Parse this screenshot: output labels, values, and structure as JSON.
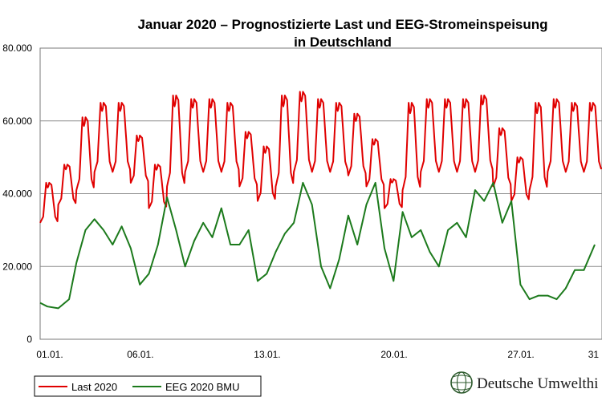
{
  "chart_data": {
    "type": "line",
    "title_lines": [
      "Januar 2020 – Prognostizierte Last und EEG-Stromeinspeisung",
      "in Deutschland"
    ],
    "ylim": [
      0,
      80000
    ],
    "y_ticks": [
      {
        "value": 0,
        "label": "0"
      },
      {
        "value": 20000,
        "label": "20.000"
      },
      {
        "value": 40000,
        "label": "40.000"
      },
      {
        "value": 60000,
        "label": "60.000"
      },
      {
        "value": 80000,
        "label": "80.000"
      }
    ],
    "xlim": [
      0,
      31
    ],
    "x_ticks": [
      {
        "value": 0,
        "label": "01.01."
      },
      {
        "value": 5,
        "label": "06.01."
      },
      {
        "value": 12,
        "label": "13.01."
      },
      {
        "value": 19,
        "label": "20.01."
      },
      {
        "value": 26,
        "label": "27.01."
      },
      {
        "value": 30,
        "label": "31"
      }
    ],
    "grid": true,
    "legend_position": "bottom-left",
    "series": [
      {
        "name": "Last 2020",
        "color": "#e00000",
        "daily_peaks": [
          43000,
          48000,
          61000,
          65000,
          65000,
          56000,
          48000,
          67000,
          66000,
          66000,
          65000,
          57000,
          53000,
          67000,
          68000,
          66000,
          65000,
          62000,
          55000,
          44000,
          65000,
          66000,
          66000,
          66000,
          67000,
          58000,
          50000,
          65000,
          66000,
          65000,
          65000
        ],
        "daily_troughs": [
          32000,
          37000,
          41000,
          46000,
          46000,
          43000,
          36000,
          42000,
          46000,
          46000,
          46000,
          42000,
          38000,
          42000,
          46000,
          46000,
          46000,
          45000,
          42000,
          36000,
          41000,
          46000,
          46000,
          46000,
          46000,
          42000,
          38000,
          41000,
          46000,
          46000,
          46000
        ]
      },
      {
        "name": "EEG 2020 BMU",
        "color": "#1c7a1c",
        "points": [
          [
            0,
            10000
          ],
          [
            0.4,
            9000
          ],
          [
            1,
            8500
          ],
          [
            1.6,
            11000
          ],
          [
            2,
            21000
          ],
          [
            2.5,
            30000
          ],
          [
            3,
            33000
          ],
          [
            3.5,
            30000
          ],
          [
            4,
            26000
          ],
          [
            4.5,
            31000
          ],
          [
            5,
            25000
          ],
          [
            5.5,
            15000
          ],
          [
            6,
            18000
          ],
          [
            6.5,
            26000
          ],
          [
            7,
            39000
          ],
          [
            7.5,
            30000
          ],
          [
            8,
            20000
          ],
          [
            8.5,
            27000
          ],
          [
            9,
            32000
          ],
          [
            9.5,
            28000
          ],
          [
            10,
            36000
          ],
          [
            10.5,
            26000
          ],
          [
            11,
            26000
          ],
          [
            11.5,
            30000
          ],
          [
            12,
            16000
          ],
          [
            12.5,
            18000
          ],
          [
            13,
            24000
          ],
          [
            13.5,
            29000
          ],
          [
            14,
            32000
          ],
          [
            14.5,
            43000
          ],
          [
            15,
            37000
          ],
          [
            15.5,
            20000
          ],
          [
            16,
            14000
          ],
          [
            16.5,
            22000
          ],
          [
            17,
            34000
          ],
          [
            17.5,
            26000
          ],
          [
            18,
            37000
          ],
          [
            18.5,
            43000
          ],
          [
            19,
            25000
          ],
          [
            19.5,
            16000
          ],
          [
            20,
            35000
          ],
          [
            20.5,
            28000
          ],
          [
            21,
            30000
          ],
          [
            21.5,
            24000
          ],
          [
            22,
            20000
          ],
          [
            22.5,
            30000
          ],
          [
            23,
            32000
          ],
          [
            23.5,
            28000
          ],
          [
            24,
            41000
          ],
          [
            24.5,
            38000
          ],
          [
            25,
            43000
          ],
          [
            25.5,
            32000
          ],
          [
            26,
            38000
          ],
          [
            26.5,
            15000
          ],
          [
            27,
            11000
          ],
          [
            27.5,
            12000
          ],
          [
            28,
            12000
          ],
          [
            28.5,
            11000
          ],
          [
            29,
            14000
          ],
          [
            29.5,
            19000
          ],
          [
            30,
            19000
          ],
          [
            30.6,
            26000
          ]
        ]
      }
    ]
  },
  "brand": {
    "name": "Deutsche Umwelthi",
    "logo_icon": "globe-icon",
    "logo_color": "#2d5a2d"
  }
}
